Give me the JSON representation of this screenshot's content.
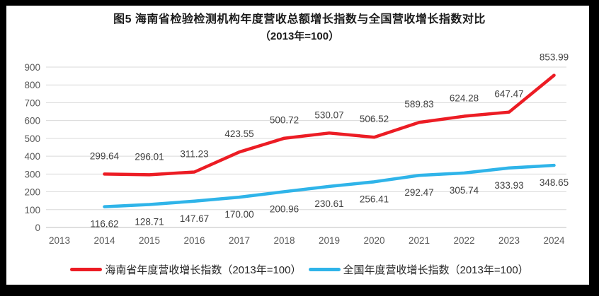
{
  "page": {
    "title_line1": "图5  海南省检验检测机构年度营收总额增长指数与全国营收增长指数对比",
    "title_line2": "（2013年=100）"
  },
  "colors": {
    "hainan_series": "#EC1C24",
    "national_series": "#2FB4E9",
    "gridline": "#D9D9D9",
    "axis_line": "#BFBFBF",
    "tick_label": "#595959",
    "data_label": "#404040",
    "background": "#FFFFFF",
    "frame": "#000000"
  },
  "legend": {
    "items": [
      {
        "name": "hainan",
        "label": "海南省年度营收增长指数（2013年=100）",
        "color": "#EC1C24"
      },
      {
        "name": "national",
        "label": "全国年度营收增长指数（2013年=100）",
        "color": "#2FB4E9"
      }
    ]
  },
  "chart_data": {
    "type": "line",
    "title": "图5  海南省检验检测机构年度营收总额增长指数与全国营收增长指数对比",
    "subtitle": "（2013年=100）",
    "categories": [
      "2013",
      "2014",
      "2015",
      "2016",
      "2017",
      "2018",
      "2019",
      "2020",
      "2021",
      "2022",
      "2023",
      "2024"
    ],
    "series": [
      {
        "name": "海南省年度营收增长指数（2013年=100）",
        "color": "#EC1C24",
        "label_position": "above",
        "values": [
          null,
          299.64,
          296.01,
          311.23,
          423.55,
          500.72,
          530.07,
          506.52,
          589.83,
          624.28,
          647.47,
          853.99
        ],
        "labels": [
          null,
          "299.64",
          "296.01",
          "311.23",
          "423.55",
          "500.72",
          "530.07",
          "506.52",
          "589.83",
          "624.28",
          "647.47",
          "853.99"
        ]
      },
      {
        "name": "全国年度营收增长指数（2013年=100）",
        "color": "#2FB4E9",
        "label_position": "below",
        "values": [
          null,
          116.62,
          128.71,
          147.67,
          170.0,
          200.96,
          230.61,
          256.41,
          292.47,
          305.74,
          333.93,
          348.65
        ],
        "labels": [
          null,
          "116.62",
          "128.71",
          "147.67",
          "170.00",
          "200.96",
          "230.61",
          "256.41",
          "292.47",
          "305.74",
          "333.93",
          "348.65"
        ]
      }
    ],
    "xlabel": "",
    "ylabel": "",
    "ylim": [
      0,
      900
    ],
    "yticks": [
      0,
      100,
      200,
      300,
      400,
      500,
      600,
      700,
      800,
      900
    ],
    "grid": true,
    "legend_position": "bottom"
  }
}
